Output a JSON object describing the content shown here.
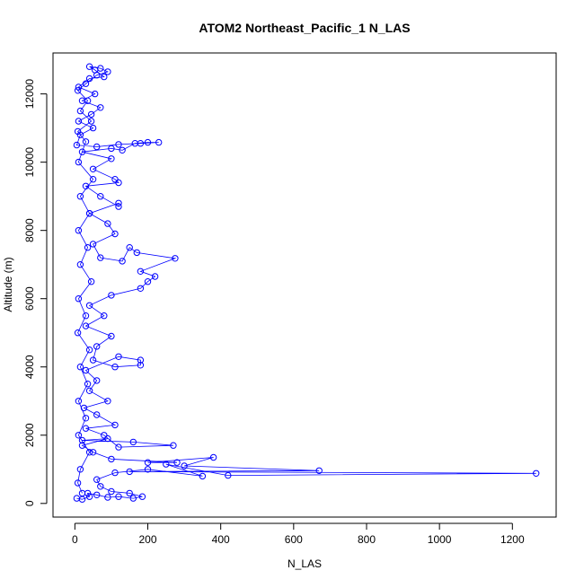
{
  "chart_data": {
    "type": "scatter",
    "title": "ATOM2 Northeast_Pacific_1 N_LAS",
    "xlabel": "N_LAS",
    "ylabel": "Altitude (m)",
    "xlim": [
      -60,
      1320
    ],
    "ylim": [
      -400,
      13200
    ],
    "x_ticks": [
      0,
      200,
      400,
      600,
      800,
      1000,
      1200
    ],
    "y_ticks": [
      0,
      2000,
      4000,
      6000,
      8000,
      10000,
      12000
    ],
    "x_tick_labels": [
      "0",
      "200",
      "400",
      "600",
      "800",
      "1000",
      "1200"
    ],
    "y_tick_labels": [
      "0",
      "2000",
      "4000",
      "6000",
      "8000",
      "10000",
      "12000"
    ],
    "marker": "open-circle",
    "connected": true,
    "grid": false,
    "series": [
      {
        "color": "#0000FF",
        "points": [
          [
            5,
            150
          ],
          [
            20,
            120
          ],
          [
            40,
            200
          ],
          [
            35,
            300
          ],
          [
            60,
            250
          ],
          [
            90,
            180
          ],
          [
            120,
            200
          ],
          [
            160,
            150
          ],
          [
            185,
            200
          ],
          [
            150,
            300
          ],
          [
            100,
            350
          ],
          [
            70,
            500
          ],
          [
            60,
            700
          ],
          [
            110,
            900
          ],
          [
            200,
            1000
          ],
          [
            350,
            800
          ],
          [
            250,
            1150
          ],
          [
            420,
            820
          ],
          [
            1265,
            880
          ],
          [
            150,
            930
          ],
          [
            670,
            960
          ],
          [
            300,
            1100
          ],
          [
            380,
            1350
          ],
          [
            200,
            1200
          ],
          [
            280,
            1200
          ],
          [
            100,
            1300
          ],
          [
            50,
            1500
          ],
          [
            20,
            1700
          ],
          [
            90,
            1900
          ],
          [
            20,
            1850
          ],
          [
            160,
            1800
          ],
          [
            270,
            1700
          ],
          [
            120,
            1650
          ],
          [
            80,
            2000
          ],
          [
            30,
            2200
          ],
          [
            110,
            2300
          ],
          [
            60,
            2600
          ],
          [
            25,
            2800
          ],
          [
            90,
            3000
          ],
          [
            40,
            3300
          ],
          [
            60,
            3600
          ],
          [
            30,
            3900
          ],
          [
            120,
            4300
          ],
          [
            180,
            4200
          ],
          [
            180,
            4050
          ],
          [
            110,
            4000
          ],
          [
            50,
            4200
          ],
          [
            60,
            4600
          ],
          [
            100,
            4900
          ],
          [
            30,
            5200
          ],
          [
            80,
            5500
          ],
          [
            40,
            5800
          ],
          [
            100,
            6100
          ],
          [
            180,
            6300
          ],
          [
            200,
            6500
          ],
          [
            220,
            6650
          ],
          [
            180,
            6800
          ],
          [
            275,
            7180
          ],
          [
            170,
            7350
          ],
          [
            150,
            7500
          ],
          [
            130,
            7100
          ],
          [
            70,
            7200
          ],
          [
            50,
            7600
          ],
          [
            110,
            7900
          ],
          [
            90,
            8200
          ],
          [
            40,
            8500
          ],
          [
            120,
            8800
          ],
          [
            120,
            8700
          ],
          [
            70,
            9000
          ],
          [
            30,
            9300
          ],
          [
            120,
            9400
          ],
          [
            110,
            9500
          ],
          [
            50,
            9800
          ],
          [
            100,
            10100
          ],
          [
            20,
            10300
          ],
          [
            100,
            10400
          ],
          [
            130,
            10350
          ],
          [
            165,
            10550
          ],
          [
            200,
            10580
          ],
          [
            230,
            10580
          ],
          [
            180,
            10550
          ],
          [
            120,
            10520
          ],
          [
            60,
            10450
          ],
          [
            5,
            10500
          ],
          [
            15,
            10800
          ],
          [
            50,
            11000
          ],
          [
            10,
            11200
          ],
          [
            45,
            11400
          ],
          [
            70,
            11600
          ],
          [
            20,
            11800
          ],
          [
            55,
            12000
          ],
          [
            10,
            12200
          ],
          [
            40,
            12450
          ],
          [
            80,
            12500
          ],
          [
            55,
            12700
          ],
          [
            40,
            12800
          ],
          [
            70,
            12750
          ],
          [
            90,
            12650
          ],
          [
            60,
            12550
          ],
          [
            30,
            12300
          ],
          [
            8,
            12100
          ],
          [
            35,
            11800
          ],
          [
            15,
            11500
          ],
          [
            45,
            11200
          ],
          [
            8,
            10900
          ],
          [
            30,
            10600
          ],
          [
            10,
            10000
          ],
          [
            50,
            9500
          ],
          [
            15,
            9000
          ],
          [
            40,
            8500
          ],
          [
            10,
            8000
          ],
          [
            35,
            7500
          ],
          [
            15,
            7000
          ],
          [
            45,
            6500
          ],
          [
            10,
            6000
          ],
          [
            30,
            5500
          ],
          [
            8,
            5000
          ],
          [
            40,
            4500
          ],
          [
            15,
            4000
          ],
          [
            35,
            3500
          ],
          [
            10,
            3000
          ],
          [
            30,
            2500
          ],
          [
            10,
            2000
          ],
          [
            40,
            1500
          ],
          [
            15,
            1000
          ],
          [
            8,
            600
          ],
          [
            20,
            300
          ]
        ]
      }
    ]
  }
}
